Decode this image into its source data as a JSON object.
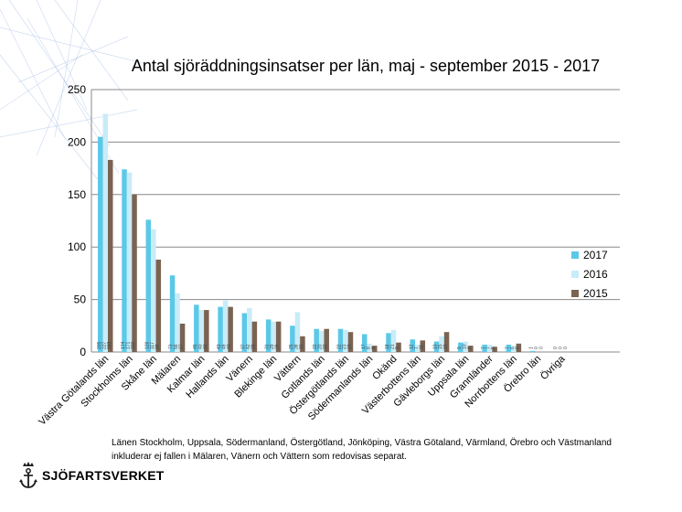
{
  "colors": {
    "series_2017": "#5bc8e8",
    "series_2016": "#c8ecf8",
    "series_2015": "#7a6352",
    "grid": "#888888",
    "background_lines": "#a9c1e6"
  },
  "chart_data": {
    "type": "bar",
    "title": "Antal sjöräddningsinsatser per län, maj - september 2015 - 2017",
    "xlabel": "",
    "ylabel": "",
    "ylim": [
      0,
      250
    ],
    "yticks": [
      0,
      50,
      100,
      150,
      200,
      250
    ],
    "grid": true,
    "legend_position": "right",
    "categories": [
      "Västra Götalands län",
      "Stockholms län",
      "Skåne län",
      "Mälaren",
      "Kalmar län",
      "Hallands län",
      "Vänern",
      "Blekinge län",
      "Vättern",
      "Gotlands län",
      "Östergötlands län",
      "Södermanlands län",
      "Okänd",
      "Västerbottens län",
      "Gävleborgs län",
      "Uppsala län",
      "Grannländer",
      "Norrbottens län",
      "Örebro län",
      "Övriga"
    ],
    "series": [
      {
        "name": "2017",
        "values": [
          205,
          174,
          126,
          73,
          45,
          43,
          37,
          31,
          25,
          22,
          22,
          17,
          18,
          12,
          10,
          9,
          7,
          7,
          1,
          0
        ]
      },
      {
        "name": "2016",
        "values": [
          227,
          171,
          117,
          56,
          40,
          49,
          42,
          29,
          38,
          20,
          21,
          8,
          21,
          7,
          15,
          10,
          7,
          6,
          0,
          0
        ]
      },
      {
        "name": "2015",
        "values": [
          183,
          150,
          88,
          27,
          40,
          43,
          29,
          29,
          15,
          22,
          19,
          6,
          9,
          11,
          19,
          6,
          5,
          8,
          0,
          0
        ]
      }
    ],
    "data_labels": [
      [
        "205",
        "227",
        "183"
      ],
      [
        "174",
        "171",
        "150"
      ],
      [
        "126",
        "117",
        "88"
      ],
      [
        "73",
        "56",
        "27"
      ],
      [
        "45",
        "40",
        "40"
      ],
      [
        "43",
        "49",
        "43"
      ],
      [
        "37",
        "42",
        "29"
      ],
      [
        "31",
        "29",
        "29"
      ],
      [
        "25",
        "38",
        "15"
      ],
      [
        "22",
        "20",
        "22"
      ],
      [
        "22",
        "21",
        "19"
      ],
      [
        "17",
        "8",
        "6"
      ],
      [
        "18",
        "21",
        "9"
      ],
      [
        "12",
        "7",
        "11"
      ],
      [
        "10",
        "15",
        "19"
      ],
      [
        "9",
        "10",
        "6"
      ],
      [
        "7",
        "7",
        "5"
      ],
      [
        "7",
        "6",
        "8"
      ],
      [
        "1",
        "0",
        "0"
      ],
      [
        "0",
        "0",
        "0"
      ]
    ]
  },
  "footnote": "Länen Stockholm, Uppsala, Södermanland, Östergötland, Jönköping, Västra Götaland, Värmland, Örebro och Västmanland inkluderar ej fallen i Mälaren, Vänern och Vättern som redovisas separat.",
  "logo": {
    "text": "SJÖFARTSVERKET",
    "icon": "anchor-crown-icon"
  }
}
